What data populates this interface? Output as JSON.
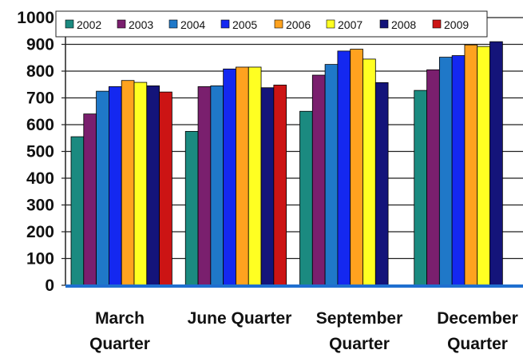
{
  "chart_data": {
    "type": "bar",
    "title": "",
    "xlabel": "",
    "ylabel": "",
    "ylim": [
      0,
      1000
    ],
    "yticks": [
      "0",
      "100",
      "200",
      "300",
      "400",
      "500",
      "600",
      "700",
      "800",
      "900",
      "1000"
    ],
    "grid": true,
    "legend_position": "top",
    "categories": [
      [
        "March",
        "Quarter"
      ],
      [
        "June Quarter"
      ],
      [
        "September",
        "Quarter"
      ],
      [
        "December",
        "Quarter"
      ]
    ],
    "series": [
      {
        "name": "2002",
        "color": "#1b8a80",
        "values": [
          555,
          575,
          650,
          728
        ]
      },
      {
        "name": "2003",
        "color": "#7a1f6e",
        "values": [
          640,
          742,
          785,
          805
        ]
      },
      {
        "name": "2004",
        "color": "#1f78c8",
        "values": [
          725,
          745,
          825,
          852
        ]
      },
      {
        "name": "2005",
        "color": "#1428f0",
        "values": [
          742,
          808,
          875,
          858
        ]
      },
      {
        "name": "2006",
        "color": "#ffa21f",
        "values": [
          765,
          815,
          882,
          898
        ]
      },
      {
        "name": "2007",
        "color": "#ffff22",
        "values": [
          758,
          815,
          845,
          892
        ]
      },
      {
        "name": "2008",
        "color": "#14147a",
        "values": [
          745,
          738,
          757,
          910
        ]
      },
      {
        "name": "2009",
        "color": "#cc1414",
        "values": [
          722,
          748,
          null,
          null
        ]
      }
    ]
  }
}
